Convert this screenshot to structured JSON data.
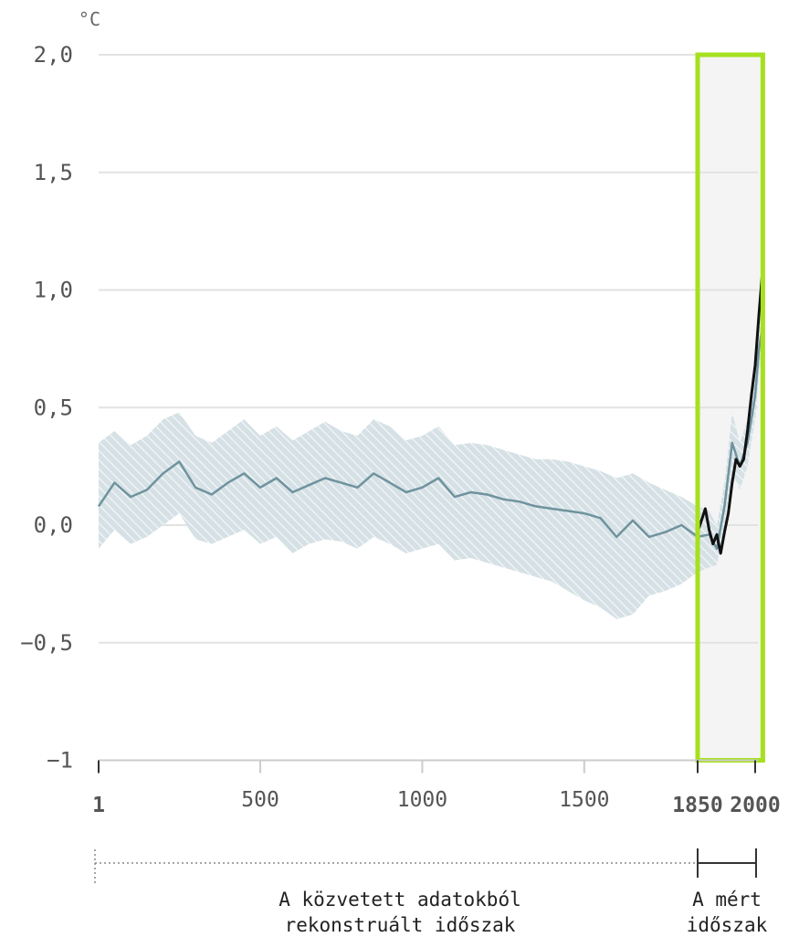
{
  "chart_data": {
    "type": "area",
    "unit_label": "°C",
    "xlim": [
      1,
      2020
    ],
    "ylim": [
      -1,
      2.0
    ],
    "y_ticks": [
      {
        "value": 2.0,
        "label": "2,0"
      },
      {
        "value": 1.5,
        "label": "1,5"
      },
      {
        "value": 1.0,
        "label": "1,0"
      },
      {
        "value": 0.5,
        "label": "0,5"
      },
      {
        "value": 0.0,
        "label": "0,0"
      },
      {
        "value": -0.5,
        "label": "−0,5"
      },
      {
        "value": -1,
        "label": "−1"
      }
    ],
    "x_ticks": [
      {
        "value": 1,
        "label": "1",
        "bold": true
      },
      {
        "value": 500,
        "label": "500",
        "bold": false
      },
      {
        "value": 1000,
        "label": "1000",
        "bold": false
      },
      {
        "value": 1500,
        "label": "1500",
        "bold": false
      },
      {
        "value": 1850,
        "label": "1850",
        "bold": true
      },
      {
        "value": 2000,
        "label": "2000",
        "bold": true
      }
    ],
    "grid": true,
    "highlight": {
      "from": 1850,
      "to": 2020,
      "border_color": "#a6e01e",
      "fill_color": "#f4f4f4"
    },
    "series": [
      {
        "color": "#6f939e",
        "x": [
          1,
          50,
          100,
          150,
          200,
          250,
          300,
          350,
          400,
          450,
          500,
          550,
          600,
          650,
          700,
          750,
          800,
          850,
          900,
          950,
          1000,
          1050,
          1100,
          1150,
          1200,
          1250,
          1300,
          1350,
          1400,
          1450,
          1500,
          1550,
          1600,
          1650,
          1700,
          1750,
          1800,
          1850,
          1880,
          1900,
          1920,
          1940,
          1960,
          1980,
          2000,
          2010,
          2020
        ],
        "y": [
          0.08,
          0.18,
          0.12,
          0.15,
          0.22,
          0.27,
          0.16,
          0.13,
          0.18,
          0.22,
          0.16,
          0.2,
          0.14,
          0.17,
          0.2,
          0.18,
          0.16,
          0.22,
          0.18,
          0.14,
          0.16,
          0.2,
          0.12,
          0.14,
          0.13,
          0.11,
          0.1,
          0.08,
          0.07,
          0.06,
          0.05,
          0.03,
          -0.05,
          0.02,
          -0.05,
          -0.03,
          0.0,
          -0.05,
          -0.04,
          -0.1,
          0.08,
          0.35,
          0.25,
          0.35,
          0.55,
          0.75,
          0.85
        ],
        "lower": [
          -0.1,
          -0.02,
          -0.08,
          -0.05,
          0.0,
          0.05,
          -0.06,
          -0.08,
          -0.05,
          -0.02,
          -0.08,
          -0.05,
          -0.12,
          -0.08,
          -0.06,
          -0.07,
          -0.1,
          -0.05,
          -0.08,
          -0.12,
          -0.1,
          -0.08,
          -0.15,
          -0.14,
          -0.16,
          -0.18,
          -0.2,
          -0.22,
          -0.24,
          -0.28,
          -0.32,
          -0.35,
          -0.4,
          -0.38,
          -0.3,
          -0.28,
          -0.25,
          -0.2,
          -0.18,
          -0.17,
          0.0,
          0.22,
          0.15,
          0.25,
          0.45,
          0.65,
          0.75
        ],
        "upper": [
          0.35,
          0.4,
          0.34,
          0.38,
          0.45,
          0.48,
          0.38,
          0.35,
          0.4,
          0.45,
          0.38,
          0.42,
          0.36,
          0.4,
          0.44,
          0.4,
          0.38,
          0.45,
          0.42,
          0.36,
          0.38,
          0.42,
          0.34,
          0.35,
          0.34,
          0.32,
          0.3,
          0.28,
          0.28,
          0.27,
          0.25,
          0.23,
          0.2,
          0.22,
          0.18,
          0.15,
          0.12,
          0.08,
          0.06,
          0.0,
          0.18,
          0.48,
          0.35,
          0.45,
          0.65,
          0.85,
          0.95
        ]
      },
      {
        "color": "#111111",
        "x": [
          1850,
          1860,
          1870,
          1880,
          1890,
          1900,
          1910,
          1920,
          1930,
          1940,
          1950,
          1960,
          1970,
          1980,
          1990,
          2000,
          2010,
          2020
        ],
        "y": [
          -0.03,
          0.02,
          0.07,
          -0.02,
          -0.08,
          -0.04,
          -0.12,
          -0.03,
          0.05,
          0.18,
          0.28,
          0.25,
          0.28,
          0.4,
          0.55,
          0.68,
          0.9,
          1.1
        ]
      }
    ]
  },
  "period_labels": {
    "reconstructed_line1": "A közvetett adatokból",
    "reconstructed_line2": "rekonstruált időszak",
    "measured_line1": "A mért",
    "measured_line2": "időszak"
  }
}
